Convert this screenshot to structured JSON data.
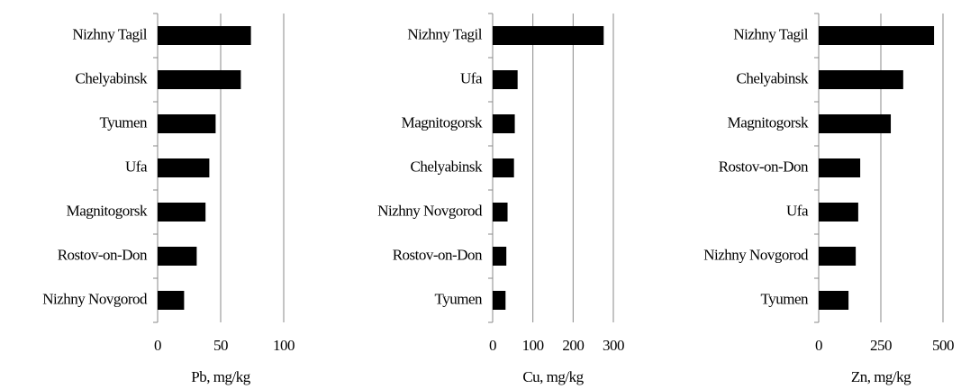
{
  "chart_data": [
    {
      "type": "bar",
      "orientation": "horizontal",
      "xlabel": "Pb, mg/kg",
      "categories": [
        "Nizhny Tagil",
        "Chelyabinsk",
        "Tyumen",
        "Ufa",
        "Magnitogorsk",
        "Rostov-on-Don",
        "Nizhny Novgorod"
      ],
      "values": [
        74,
        66,
        46,
        41,
        38,
        31,
        21
      ],
      "color": "#000000",
      "xlim": [
        0,
        100
      ],
      "xticks": [
        0,
        50,
        100
      ],
      "grid": true
    },
    {
      "type": "bar",
      "orientation": "horizontal",
      "xlabel": "Cu, mg/kg",
      "categories": [
        "Nizhny Tagil",
        "Ufa",
        "Magnitogorsk",
        "Chelyabinsk",
        "Nizhny Novgorod",
        "Rostov-on-Don",
        "Tyumen"
      ],
      "values": [
        276,
        62,
        55,
        53,
        37,
        34,
        32
      ],
      "color": "#000000",
      "xlim": [
        0,
        300
      ],
      "xticks": [
        0,
        100,
        200,
        300
      ],
      "grid": true
    },
    {
      "type": "bar",
      "orientation": "horizontal",
      "xlabel": "Zn, mg/kg",
      "categories": [
        "Nizhny Tagil",
        "Chelyabinsk",
        "Magnitogorsk",
        "Rostov-on-Don",
        "Ufa",
        "Nizhny Novgorod",
        "Tyumen"
      ],
      "values": [
        464,
        340,
        290,
        167,
        159,
        149,
        120
      ],
      "color": "#000000",
      "xlim": [
        0,
        500
      ],
      "xticks": [
        0,
        250,
        500
      ],
      "grid": true
    }
  ]
}
